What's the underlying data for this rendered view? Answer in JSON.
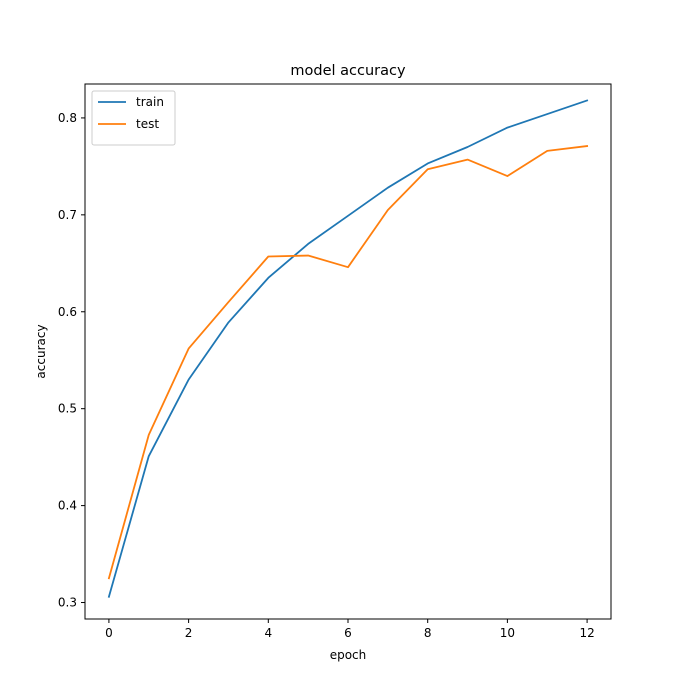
{
  "chart_data": {
    "type": "line",
    "title": "model accuracy",
    "xlabel": "epoch",
    "ylabel": "accuracy",
    "xlim": [
      -0.6,
      12.6
    ],
    "ylim": [
      0.283,
      0.835
    ],
    "xticks": [
      0,
      2,
      4,
      6,
      8,
      10,
      12
    ],
    "yticks": [
      0.3,
      0.4,
      0.5,
      0.6,
      0.7,
      0.8
    ],
    "xtick_labels": [
      "0",
      "2",
      "4",
      "6",
      "8",
      "10",
      "12"
    ],
    "ytick_labels": [
      "0.3",
      "0.4",
      "0.5",
      "0.6",
      "0.7",
      "0.8"
    ],
    "grid": false,
    "legend_position": "top-left",
    "x": [
      0,
      1,
      2,
      3,
      4,
      5,
      6,
      7,
      8,
      9,
      10,
      11,
      12
    ],
    "series": [
      {
        "name": "train",
        "color": "#1f77b4",
        "values": [
          0.306,
          0.451,
          0.53,
          0.589,
          0.635,
          0.67,
          0.699,
          0.728,
          0.753,
          0.77,
          0.79,
          0.804,
          0.818
        ]
      },
      {
        "name": "test",
        "color": "#ff7f0e",
        "values": [
          0.325,
          0.473,
          0.562,
          0.61,
          0.657,
          0.658,
          0.646,
          0.705,
          0.747,
          0.757,
          0.74,
          0.766,
          0.771
        ]
      }
    ]
  }
}
